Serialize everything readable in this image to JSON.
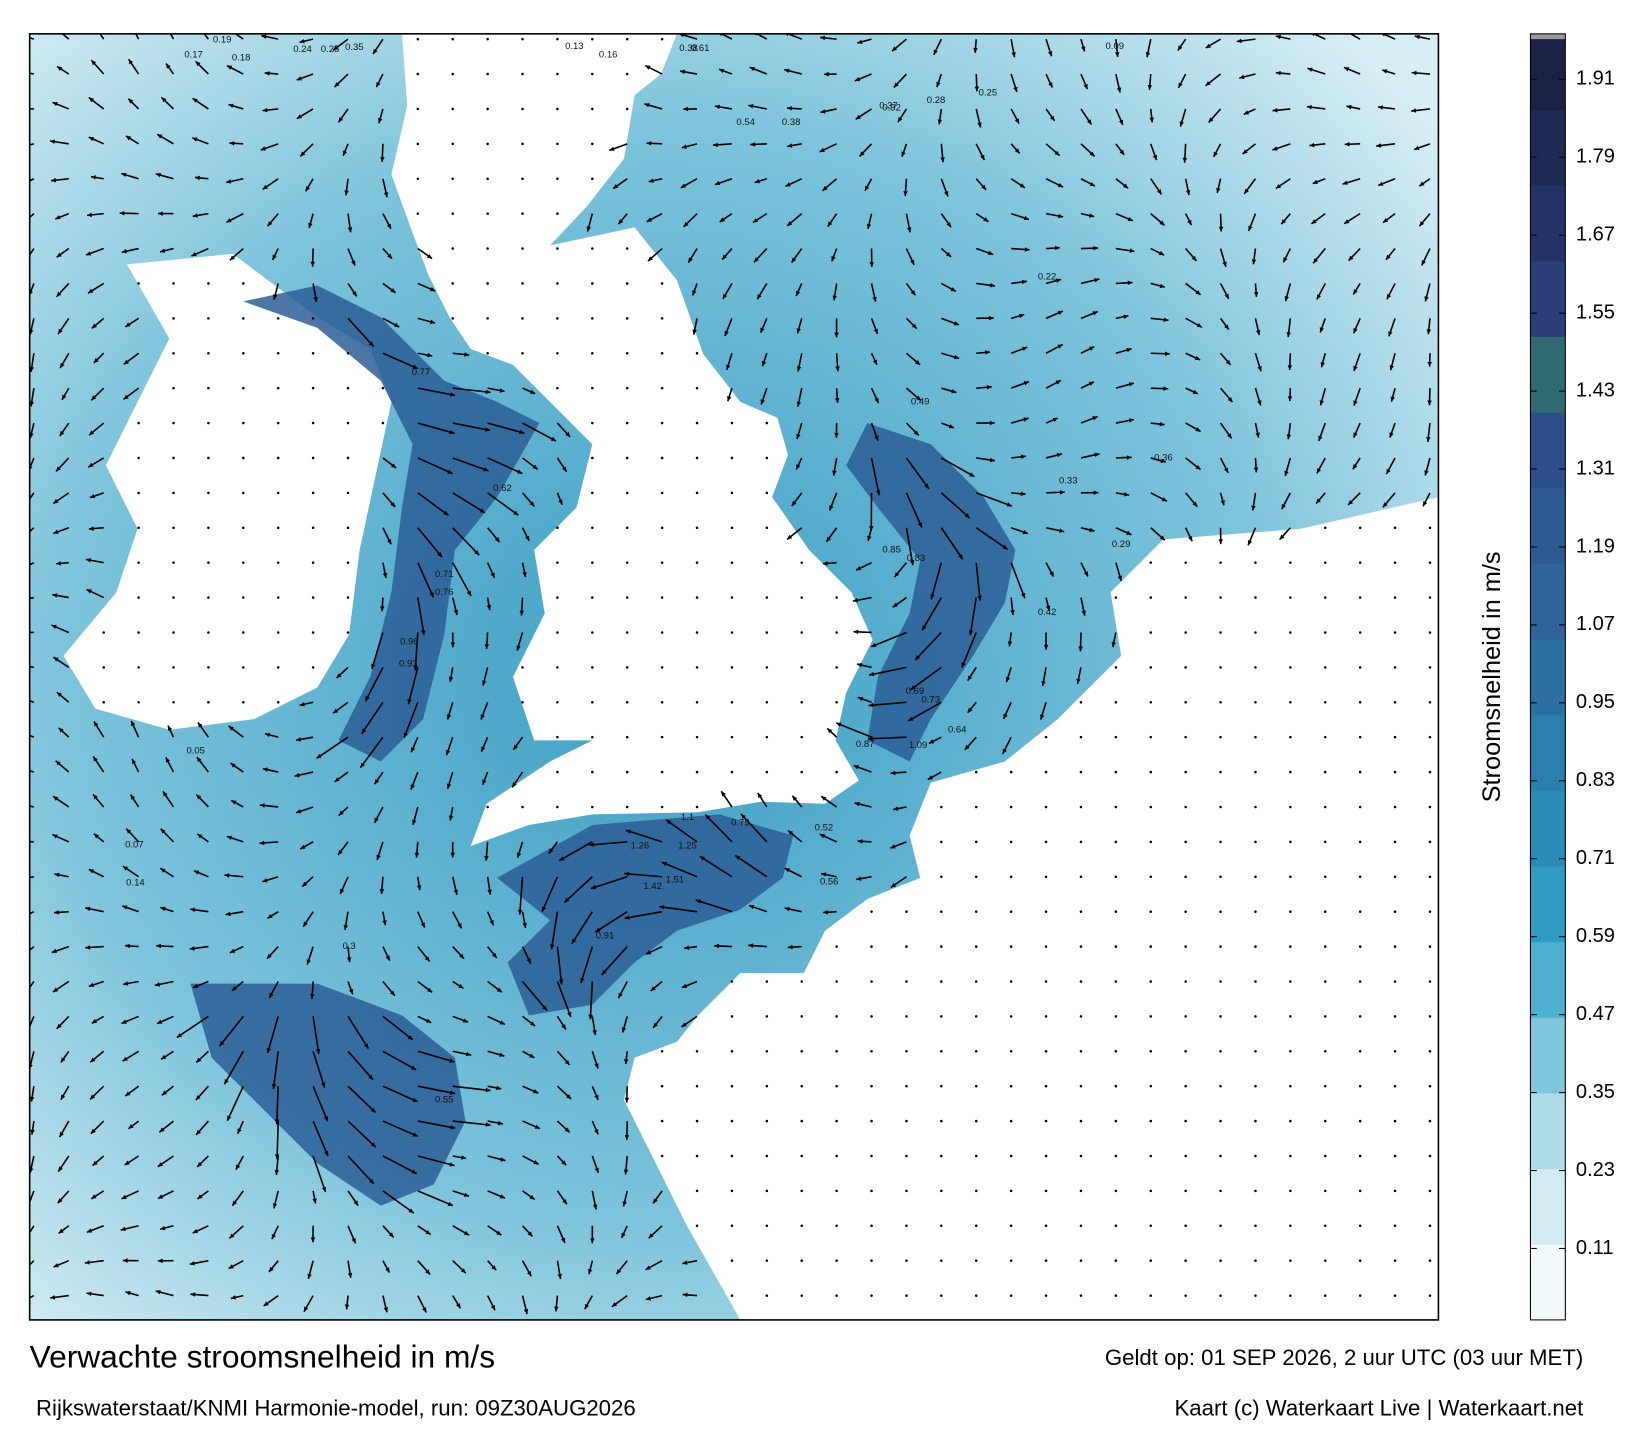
{
  "chart_data": {
    "type": "map",
    "title": "Verwachte stroomsnelheid in m/s",
    "valid_time": "Geldt op: 01 SEP 2026, 2 uur UTC (03 uur MET)",
    "source": "Rijkswaterstaat/KNMI Harmonie-model, run: 09Z30AUG2026",
    "credit": "Kaart (c) Waterkaart Live | Waterkaart.net",
    "colorbar": {
      "label": "Stroomsnelheid in m/s",
      "lim": [
        0,
        1.98
      ],
      "ticks": [
        0.11,
        0.23,
        0.35,
        0.47,
        0.59,
        0.71,
        0.83,
        0.95,
        1.07,
        1.19,
        1.31,
        1.43,
        1.55,
        1.67,
        1.79,
        1.91
      ],
      "colors": [
        "#f2f9fb",
        "#d3ebf2",
        "#afdbe8",
        "#7fc6dc",
        "#4eafcf",
        "#2e9bc2",
        "#2a8bb6",
        "#2a7fae",
        "#2c70a2",
        "#2f6399",
        "#2e5a92",
        "#2c4f89",
        "#2f6a73",
        "#2a3f78",
        "#243366",
        "#1e2955",
        "#1a2046"
      ]
    },
    "speed_labels": [
      0.19,
      0.17,
      0.18,
      0.24,
      0.25,
      0.35,
      0.38,
      0.54,
      0.37,
      0.32,
      0.28,
      0.25,
      0.22,
      0.09,
      0.13,
      0.16,
      0.38,
      0.61,
      0.77,
      0.62,
      0.96,
      0.93,
      0.76,
      0.71,
      0.85,
      0.83,
      0.69,
      0.73,
      0.64,
      0.87,
      1.09,
      1.26,
      1.25,
      1.51,
      1.42,
      1.1,
      0.91,
      0.79,
      0.56,
      0.52,
      0.42,
      0.33,
      0.36,
      0.49,
      0.55,
      0.3,
      0.05,
      0.07,
      0.14,
      0.29
    ]
  }
}
